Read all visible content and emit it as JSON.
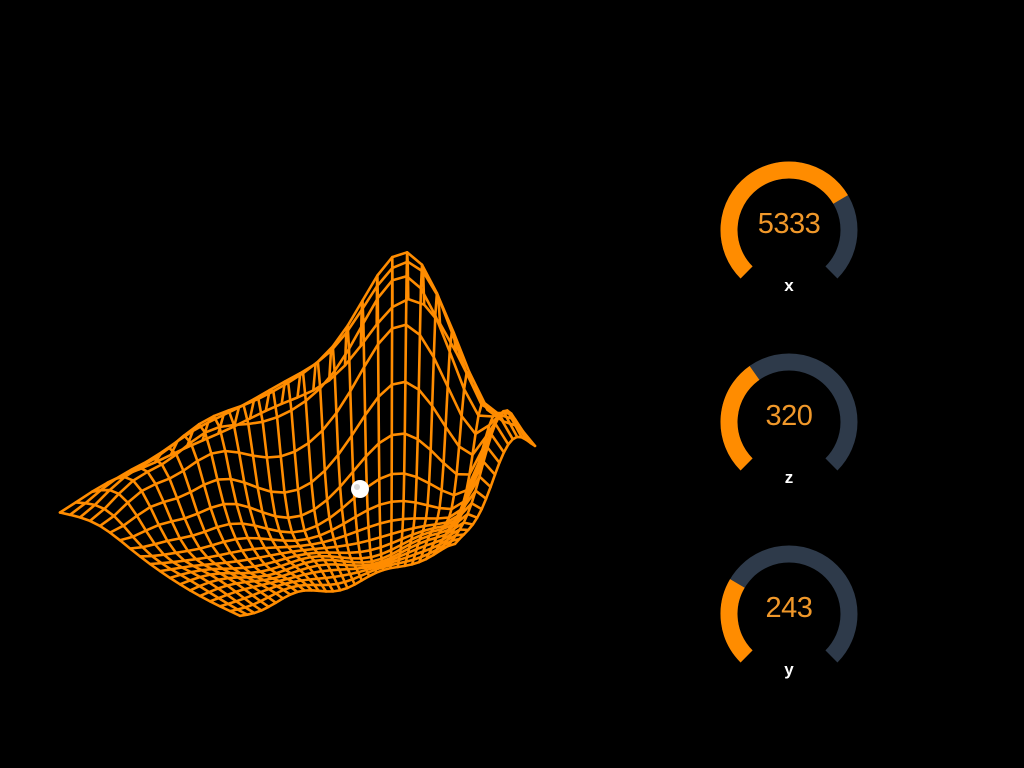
{
  "colors": {
    "background": "#000000",
    "accent": "#ff8c00",
    "track": "#2e3a4a",
    "value_text": "#f0982a",
    "label_text": "#ffffff"
  },
  "surface": {
    "description_icon": "cursor-handle-icon",
    "mesh_color": "#ff8c00"
  },
  "gauges": [
    {
      "label": "x",
      "value": "5333",
      "fill_fraction": 0.72
    },
    {
      "label": "z",
      "value": "320",
      "fill_fraction": 0.37
    },
    {
      "label": "y",
      "value": "243",
      "fill_fraction": 0.28
    }
  ]
}
